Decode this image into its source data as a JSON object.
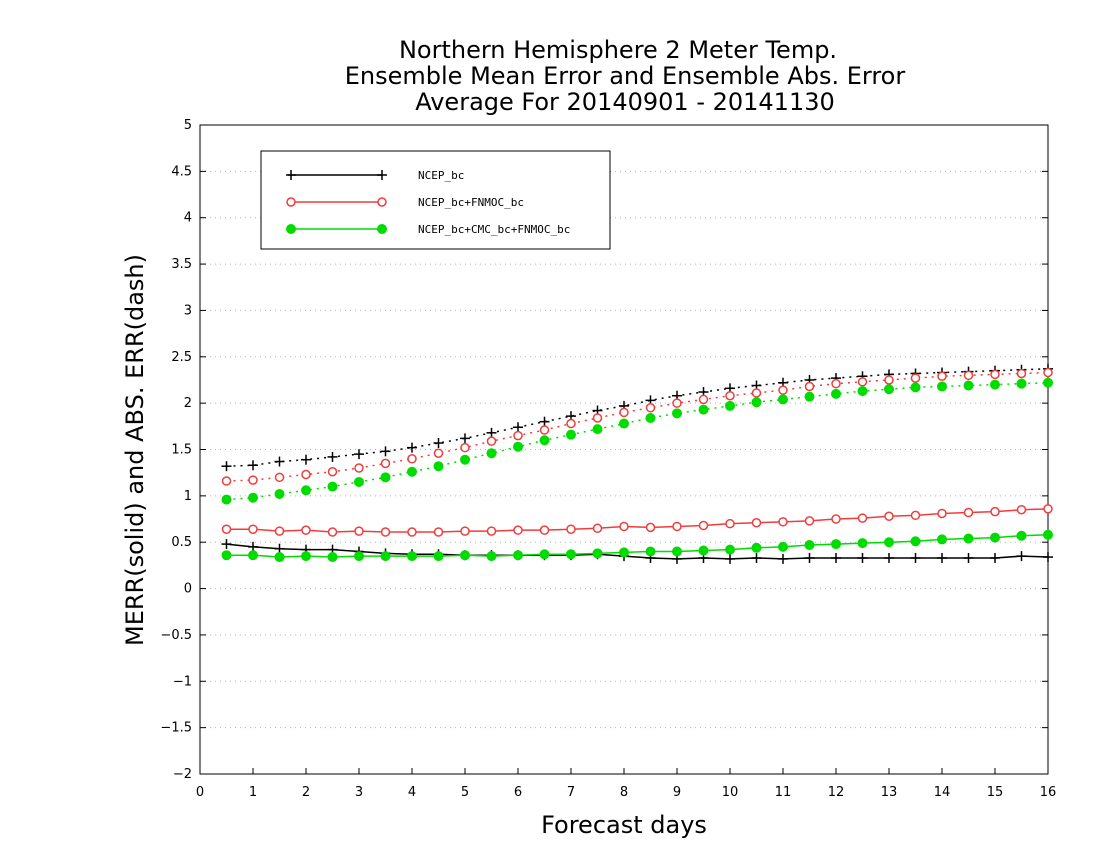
{
  "chart_data": {
    "type": "line",
    "title_lines": [
      "Northern Hemisphere 2 Meter Temp.",
      "Ensemble Mean Error and Ensemble Abs. Error",
      "Average For 20140901 - 20141130"
    ],
    "xlabel": "Forecast days",
    "ylabel": "MERR(solid) and ABS. ERR(dash)",
    "xlim": [
      0,
      16
    ],
    "ylim": [
      -2,
      5
    ],
    "xticks": [
      0,
      1,
      2,
      3,
      4,
      5,
      6,
      7,
      8,
      9,
      10,
      11,
      12,
      13,
      14,
      15,
      16
    ],
    "xtick_labels": [
      "0",
      "1",
      "2",
      "3",
      "4",
      "5",
      "6",
      "7",
      "8",
      "9",
      "10",
      "11",
      "12",
      "13",
      "14",
      "15",
      "16"
    ],
    "yticks": [
      -2,
      -1.5,
      -1,
      -0.5,
      0,
      0.5,
      1,
      1.5,
      2,
      2.5,
      3,
      3.5,
      4,
      4.5,
      5
    ],
    "ytick_labels": [
      "−2",
      "−1.5",
      "−1",
      "−0.5",
      "0",
      "0.5",
      "1",
      "1.5",
      "2",
      "2.5",
      "3",
      "3.5",
      "4",
      "4.5",
      "5"
    ],
    "grid": "horizontal dotted",
    "legend_position": "top-left",
    "x": [
      0.5,
      1,
      1.5,
      2,
      2.5,
      3,
      3.5,
      4,
      4.5,
      5,
      5.5,
      6,
      6.5,
      7,
      7.5,
      8,
      8.5,
      9,
      9.5,
      10,
      10.5,
      11,
      11.5,
      12,
      12.5,
      13,
      13.5,
      14,
      14.5,
      15,
      15.5,
      16
    ],
    "series": [
      {
        "name": "NCEP_bc",
        "color": "#000000",
        "marker": "plus",
        "merr": [
          0.48,
          0.45,
          0.43,
          0.42,
          0.42,
          0.4,
          0.38,
          0.37,
          0.37,
          0.36,
          0.36,
          0.36,
          0.36,
          0.36,
          0.37,
          0.35,
          0.33,
          0.32,
          0.33,
          0.32,
          0.33,
          0.32,
          0.33,
          0.33,
          0.33,
          0.33,
          0.33,
          0.33,
          0.33,
          0.33,
          0.35,
          0.34
        ],
        "abs_err": [
          1.32,
          1.33,
          1.37,
          1.39,
          1.42,
          1.45,
          1.48,
          1.52,
          1.57,
          1.62,
          1.68,
          1.74,
          1.8,
          1.86,
          1.92,
          1.97,
          2.03,
          2.08,
          2.12,
          2.16,
          2.19,
          2.22,
          2.25,
          2.27,
          2.29,
          2.31,
          2.32,
          2.33,
          2.34,
          2.35,
          2.36,
          2.37
        ]
      },
      {
        "name": "NCEP_bc+FNMOC_bc",
        "color": "#f03c3c",
        "marker": "open-circle",
        "merr": [
          0.64,
          0.64,
          0.62,
          0.63,
          0.61,
          0.62,
          0.61,
          0.61,
          0.61,
          0.62,
          0.62,
          0.63,
          0.63,
          0.64,
          0.65,
          0.67,
          0.66,
          0.67,
          0.68,
          0.7,
          0.71,
          0.72,
          0.73,
          0.75,
          0.76,
          0.78,
          0.79,
          0.81,
          0.82,
          0.83,
          0.85,
          0.86
        ],
        "abs_err": [
          1.16,
          1.17,
          1.2,
          1.23,
          1.26,
          1.3,
          1.35,
          1.4,
          1.46,
          1.52,
          1.59,
          1.65,
          1.71,
          1.78,
          1.84,
          1.9,
          1.95,
          2.0,
          2.04,
          2.08,
          2.11,
          2.14,
          2.18,
          2.21,
          2.23,
          2.25,
          2.27,
          2.29,
          2.3,
          2.31,
          2.32,
          2.33
        ]
      },
      {
        "name": "NCEP_bc+CMC_bc+FNMOC_bc",
        "color": "#00dc00",
        "marker": "filled-circle",
        "merr": [
          0.36,
          0.36,
          0.34,
          0.35,
          0.34,
          0.35,
          0.35,
          0.35,
          0.35,
          0.36,
          0.35,
          0.36,
          0.37,
          0.37,
          0.38,
          0.39,
          0.4,
          0.4,
          0.41,
          0.42,
          0.44,
          0.45,
          0.47,
          0.48,
          0.49,
          0.5,
          0.51,
          0.53,
          0.54,
          0.55,
          0.57,
          0.58
        ],
        "abs_err": [
          0.96,
          0.98,
          1.02,
          1.06,
          1.1,
          1.15,
          1.2,
          1.26,
          1.32,
          1.39,
          1.46,
          1.53,
          1.6,
          1.66,
          1.72,
          1.78,
          1.84,
          1.89,
          1.93,
          1.97,
          2.01,
          2.04,
          2.07,
          2.1,
          2.13,
          2.15,
          2.17,
          2.18,
          2.19,
          2.2,
          2.21,
          2.22
        ]
      }
    ]
  }
}
